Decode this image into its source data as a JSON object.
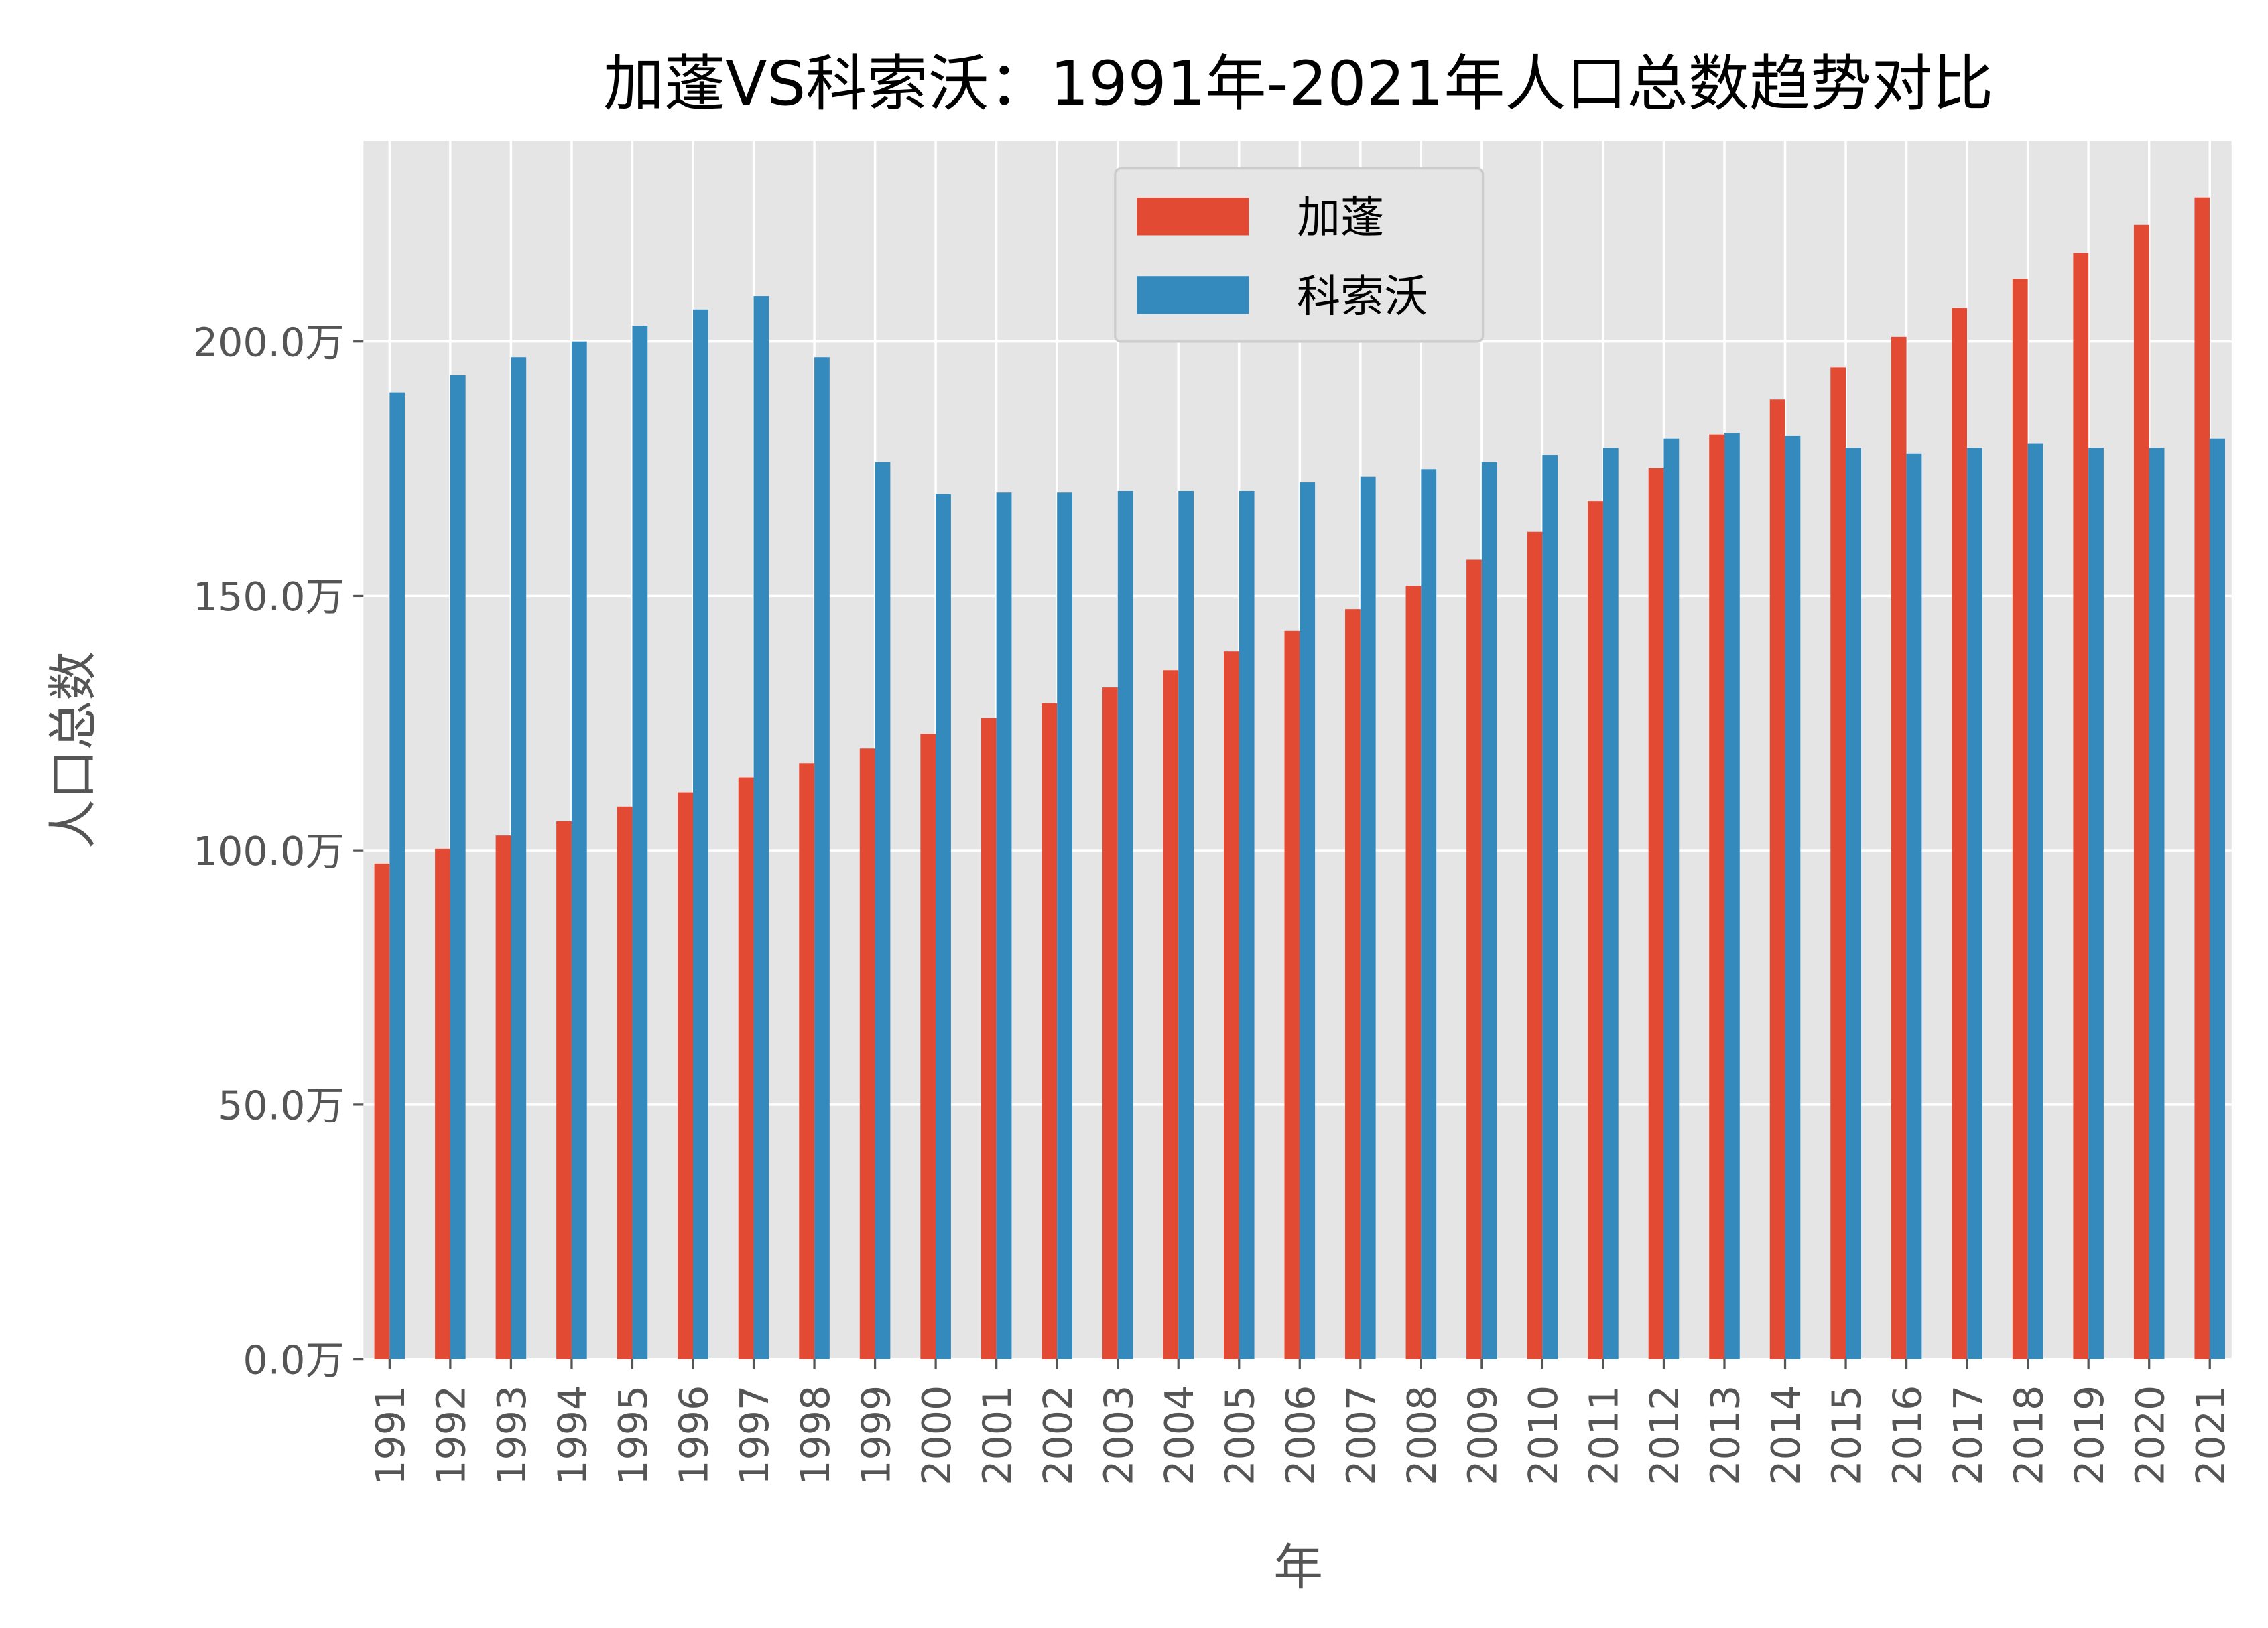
{
  "chart_data": {
    "type": "bar",
    "title": "加蓬VS科索沃：1991年-2021年人口总数趋势对比",
    "xlabel": "年",
    "ylabel": "人口总数",
    "ylim": [
      0,
      239.4
    ],
    "y_unit_suffix": "万",
    "yticks": [
      0,
      50,
      100,
      150,
      200
    ],
    "ytick_labels": [
      "0.0万",
      "50.0万",
      "100.0万",
      "150.0万",
      "200.0万"
    ],
    "grid": true,
    "legend_position": "top-center",
    "categories": [
      "1991",
      "1992",
      "1993",
      "1994",
      "1995",
      "1996",
      "1997",
      "1998",
      "1999",
      "2000",
      "2001",
      "2002",
      "2003",
      "2004",
      "2005",
      "2006",
      "2007",
      "2008",
      "2009",
      "2010",
      "2011",
      "2012",
      "2013",
      "2014",
      "2015",
      "2016",
      "2017",
      "2018",
      "2019",
      "2020",
      "2021"
    ],
    "series": [
      {
        "name": "加蓬",
        "color": "#E24A33",
        "values": [
          97.4,
          100.3,
          102.9,
          105.7,
          108.6,
          111.4,
          114.3,
          117.1,
          120.0,
          122.9,
          126.0,
          128.9,
          132.0,
          135.4,
          139.1,
          143.1,
          147.4,
          152.0,
          157.1,
          162.6,
          168.6,
          175.1,
          181.7,
          188.6,
          194.9,
          200.9,
          206.6,
          212.3,
          217.4,
          222.9,
          228.3
        ]
      },
      {
        "name": "科索沃",
        "color": "#348ABD",
        "values": [
          190.0,
          193.4,
          196.9,
          200.0,
          203.1,
          206.3,
          208.9,
          196.9,
          176.3,
          170.0,
          170.3,
          170.3,
          170.6,
          170.6,
          170.6,
          172.3,
          173.4,
          174.9,
          176.3,
          177.7,
          179.1,
          180.9,
          182.0,
          181.4,
          179.1,
          178.0,
          179.1,
          180.0,
          179.1,
          179.1,
          180.9
        ]
      }
    ],
    "background_color": "#E5E5E5"
  }
}
